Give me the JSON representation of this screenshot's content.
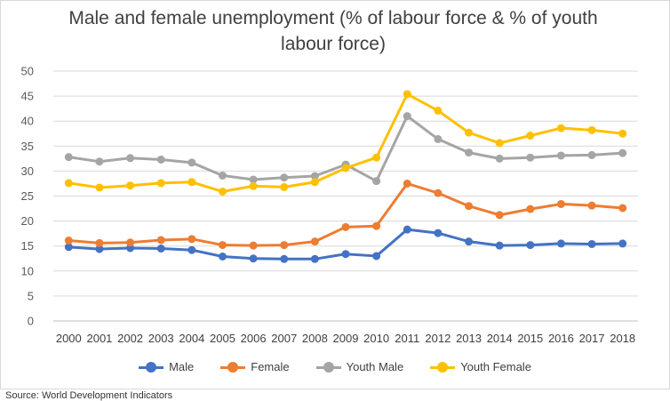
{
  "chart_data": {
    "type": "line",
    "title": "Male and female unemployment (% of labour force  & % of youth labour force)",
    "categories": [
      "2000",
      "2001",
      "2002",
      "2003",
      "2004",
      "2005",
      "2006",
      "2007",
      "2008",
      "2009",
      "2010",
      "2011",
      "2012",
      "2013",
      "2014",
      "2015",
      "2016",
      "2017",
      "2018"
    ],
    "ylim": [
      0,
      50
    ],
    "yticks": [
      0,
      5,
      10,
      15,
      20,
      25,
      30,
      35,
      40,
      45,
      50
    ],
    "grid": true,
    "legend_position": "bottom",
    "series": [
      {
        "name": "Male",
        "color": "#4472c4",
        "values": [
          14.8,
          14.4,
          14.6,
          14.5,
          14.2,
          12.9,
          12.5,
          12.4,
          12.4,
          13.4,
          13.0,
          18.3,
          17.6,
          15.9,
          15.1,
          15.2,
          15.5,
          15.4,
          15.5
        ]
      },
      {
        "name": "Female",
        "color": "#ed7d31",
        "values": [
          16.1,
          15.6,
          15.7,
          16.2,
          16.4,
          15.2,
          15.1,
          15.2,
          15.9,
          18.8,
          19.0,
          27.5,
          25.6,
          23.0,
          21.2,
          22.4,
          23.4,
          23.1,
          22.6
        ]
      },
      {
        "name": "Youth Male",
        "color": "#a5a5a5",
        "values": [
          32.8,
          31.9,
          32.6,
          32.3,
          31.7,
          29.1,
          28.3,
          28.7,
          29.0,
          31.3,
          28.0,
          41.0,
          36.4,
          33.7,
          32.5,
          32.7,
          33.1,
          33.2,
          33.6
        ]
      },
      {
        "name": "Youth Female",
        "color": "#ffc000",
        "values": [
          27.6,
          26.7,
          27.1,
          27.6,
          27.8,
          25.9,
          27.0,
          26.8,
          27.8,
          30.6,
          32.7,
          45.4,
          42.1,
          37.7,
          35.6,
          37.1,
          38.6,
          38.2,
          37.5
        ]
      }
    ]
  },
  "source_note": "Source: World Development Indicators"
}
